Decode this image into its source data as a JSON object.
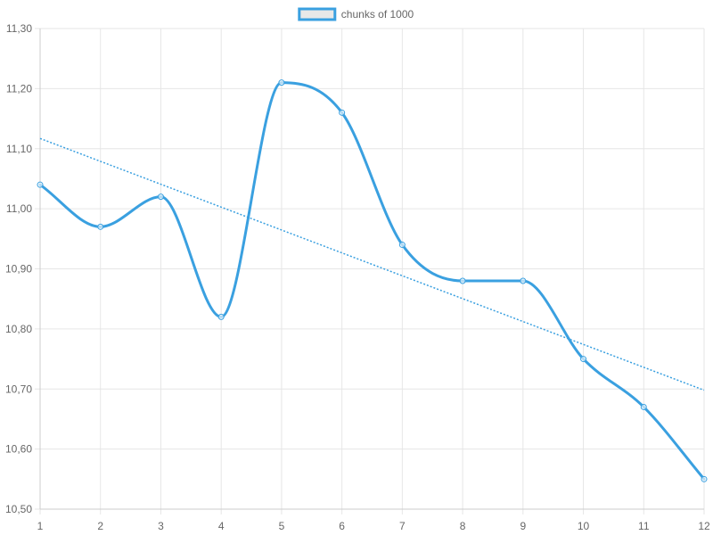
{
  "chart_data": {
    "type": "line",
    "x": [
      1,
      2,
      3,
      4,
      5,
      6,
      7,
      8,
      9,
      10,
      11,
      12
    ],
    "series": [
      {
        "name": "chunks of 1000",
        "values": [
          11.04,
          10.97,
          11.02,
          10.82,
          11.21,
          11.16,
          10.94,
          10.88,
          10.88,
          10.75,
          10.67,
          10.55
        ],
        "color": "#3aa0e0",
        "markers": "hollow-circle",
        "smooth": true
      }
    ],
    "trendline": {
      "type": "linear",
      "style": "dotted",
      "color": "#3aa0e0",
      "y_at_first_x": 11.117,
      "y_at_last_x": 10.698
    },
    "x_ticks": [
      "1",
      "2",
      "3",
      "4",
      "5",
      "6",
      "7",
      "8",
      "9",
      "10",
      "11",
      "12"
    ],
    "y_ticks": [
      "10,50",
      "10,60",
      "10,70",
      "10,80",
      "10,90",
      "11,00",
      "11,10",
      "11,20",
      "11,30"
    ],
    "y_tick_values": [
      10.5,
      10.6,
      10.7,
      10.8,
      10.9,
      11.0,
      11.1,
      11.2,
      11.3
    ],
    "ylim": [
      10.5,
      11.3
    ],
    "xlim": [
      1,
      12
    ],
    "decimal_separator": ",",
    "grid": true,
    "grid_color": "#e6e6e6",
    "axis_color": "#cccccc",
    "legend": {
      "position": "top",
      "swatch_fill": "#e8e8e8",
      "swatch_border": "#3aa0e0"
    }
  }
}
